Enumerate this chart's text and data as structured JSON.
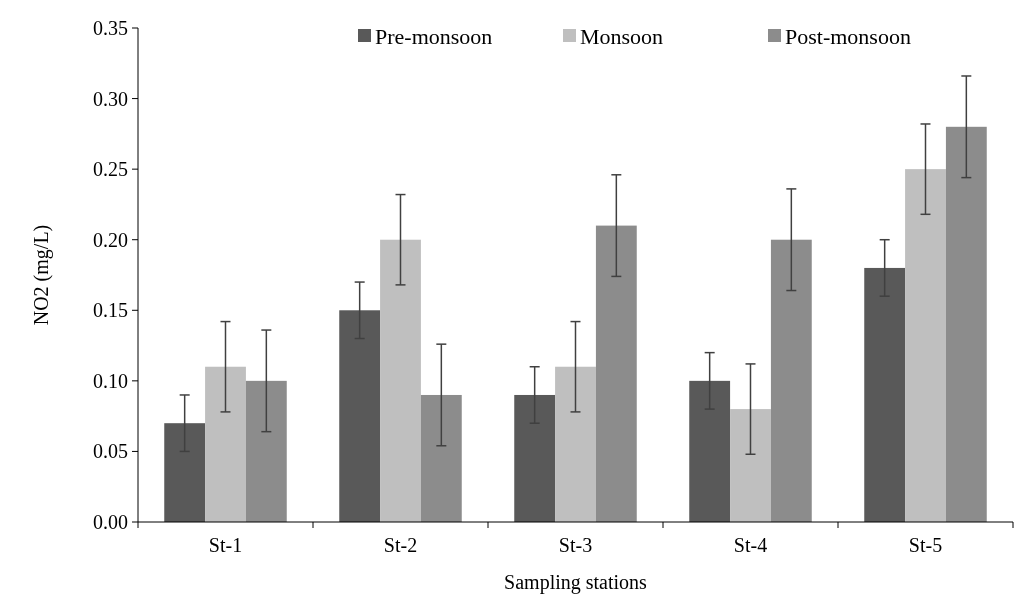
{
  "chart_data": {
    "type": "bar",
    "xlabel": "Sampling stations",
    "ylabel": "NO2 (mg/L)",
    "categories": [
      "St-1",
      "St-2",
      "St-3",
      "St-4",
      "St-5"
    ],
    "series": [
      {
        "name": "Pre-monsoon",
        "color": "#595959",
        "values": [
          0.07,
          0.15,
          0.09,
          0.1,
          0.18
        ],
        "errors": [
          0.02,
          0.02,
          0.02,
          0.02,
          0.02
        ]
      },
      {
        "name": "Monsoon",
        "color": "#bfbfbf",
        "values": [
          0.11,
          0.2,
          0.11,
          0.08,
          0.25
        ],
        "errors": [
          0.032,
          0.032,
          0.032,
          0.032,
          0.032
        ]
      },
      {
        "name": "Post-monsoon",
        "color": "#8c8c8c",
        "values": [
          0.1,
          0.09,
          0.21,
          0.2,
          0.28
        ],
        "errors": [
          0.036,
          0.036,
          0.036,
          0.036,
          0.036
        ]
      }
    ],
    "ylim": [
      0,
      0.35
    ],
    "yticks": [
      {
        "value": 0,
        "label": "0.00"
      },
      {
        "value": 0.05,
        "label": "0.05"
      },
      {
        "value": 0.1,
        "label": "0.10"
      },
      {
        "value": 0.15,
        "label": "0.15"
      },
      {
        "value": 0.2,
        "label": "0.20"
      },
      {
        "value": 0.25,
        "label": "0.25"
      },
      {
        "value": 0.3,
        "label": "0.30"
      },
      {
        "value": 0.35,
        "label": "0.35"
      }
    ],
    "grid": false,
    "legend": "top"
  }
}
